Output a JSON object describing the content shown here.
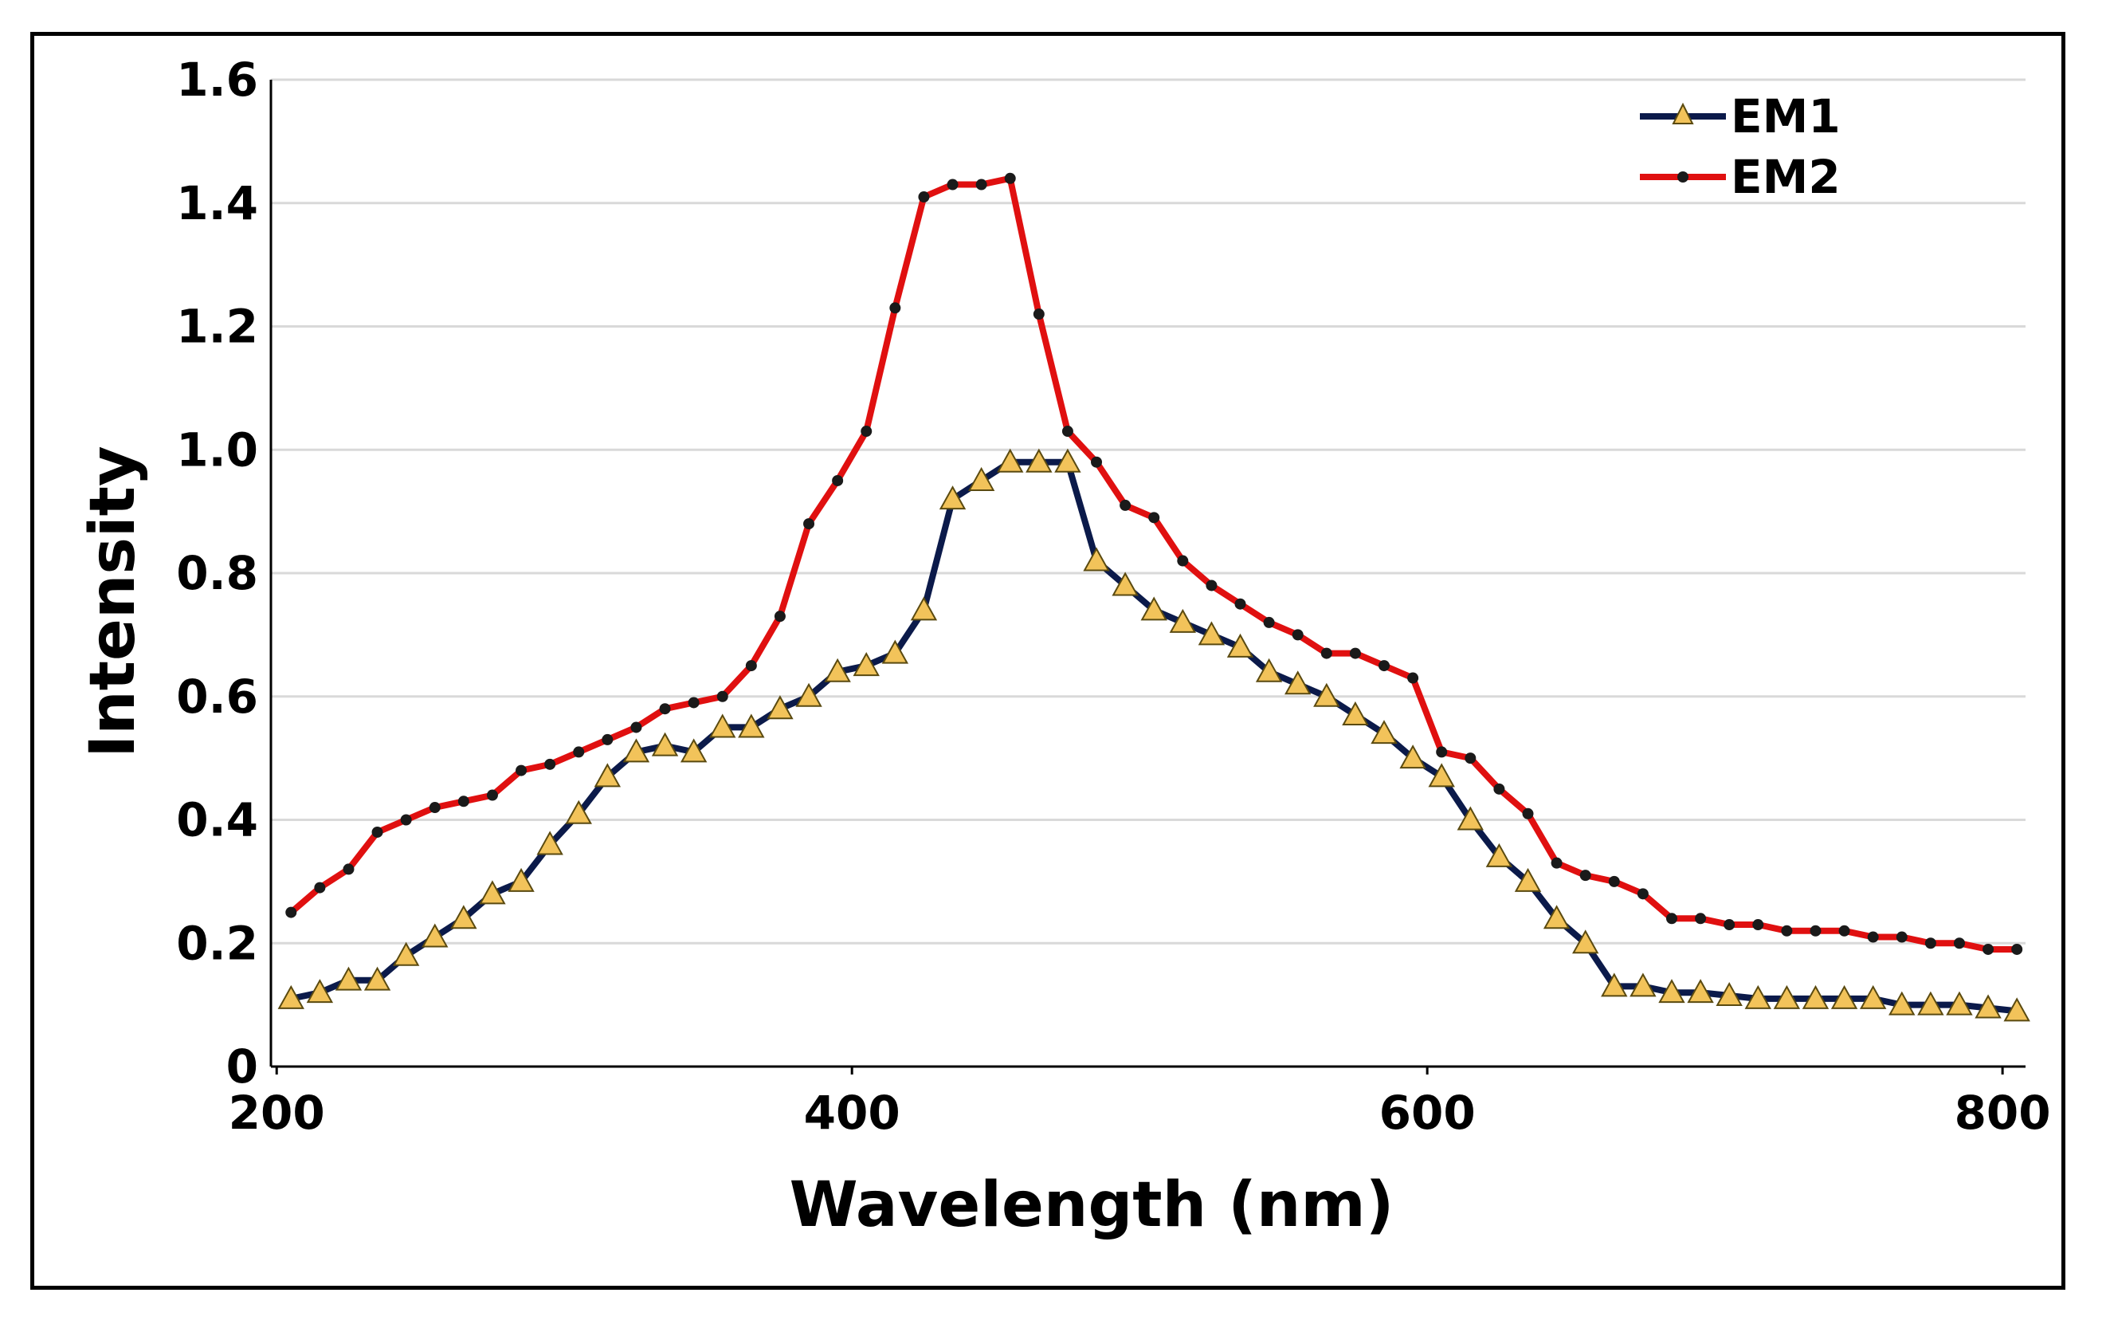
{
  "chart_data": {
    "type": "line",
    "title": "",
    "xlabel": "Wavelength (nm)",
    "ylabel": "Intensity",
    "xlim": [
      198,
      808
    ],
    "ylim": [
      0,
      1.6
    ],
    "grid": true,
    "legend_position": "top-right",
    "x_ticks": [
      200,
      400,
      600,
      800
    ],
    "x_tick_labels": [
      "200",
      "400",
      "600",
      "800"
    ],
    "y_ticks": [
      0,
      0.2,
      0.4,
      0.6,
      0.8,
      1.0,
      1.2,
      1.4,
      1.6
    ],
    "y_tick_labels": [
      "0",
      "0.2",
      "0.4",
      "0.6",
      "0.8",
      "1.0",
      "1.2",
      "1.4",
      "1.6"
    ],
    "series": [
      {
        "name": "EM1",
        "line_color": "#0b1a4a",
        "marker": "triangle",
        "marker_color": "#f2c35a",
        "x": [
          205,
          215,
          225,
          235,
          245,
          255,
          265,
          275,
          285,
          295,
          305,
          315,
          325,
          335,
          345,
          355,
          365,
          375,
          385,
          395,
          405,
          415,
          425,
          435,
          445,
          455,
          465,
          475,
          485,
          495,
          505,
          515,
          525,
          535,
          545,
          555,
          565,
          575,
          585,
          595,
          605,
          615,
          625,
          635,
          645,
          655,
          665,
          675,
          685,
          695,
          705,
          715,
          725,
          735,
          745,
          755,
          765,
          775,
          785,
          795,
          805
        ],
        "y": [
          0.11,
          0.12,
          0.14,
          0.14,
          0.18,
          0.21,
          0.24,
          0.28,
          0.3,
          0.36,
          0.41,
          0.47,
          0.51,
          0.52,
          0.51,
          0.55,
          0.55,
          0.58,
          0.6,
          0.64,
          0.65,
          0.67,
          0.74,
          0.92,
          0.95,
          0.98,
          0.98,
          0.98,
          0.82,
          0.78,
          0.74,
          0.72,
          0.7,
          0.68,
          0.64,
          0.62,
          0.6,
          0.57,
          0.54,
          0.5,
          0.47,
          0.4,
          0.34,
          0.3,
          0.24,
          0.2,
          0.13,
          0.13,
          0.12,
          0.12,
          0.115,
          0.11,
          0.11,
          0.11,
          0.11,
          0.11,
          0.1,
          0.1,
          0.1,
          0.095,
          0.09
        ]
      },
      {
        "name": "EM2",
        "line_color": "#e01010",
        "marker": "dot",
        "marker_color": "#1a1a1a",
        "x": [
          205,
          215,
          225,
          235,
          245,
          255,
          265,
          275,
          285,
          295,
          305,
          315,
          325,
          335,
          345,
          355,
          365,
          375,
          385,
          395,
          405,
          415,
          425,
          435,
          445,
          455,
          465,
          475,
          485,
          495,
          505,
          515,
          525,
          535,
          545,
          555,
          565,
          575,
          585,
          595,
          605,
          615,
          625,
          635,
          645,
          655,
          665,
          675,
          685,
          695,
          705,
          715,
          725,
          735,
          745,
          755,
          765,
          775,
          785,
          795,
          805
        ],
        "y": [
          0.25,
          0.29,
          0.32,
          0.38,
          0.4,
          0.42,
          0.43,
          0.44,
          0.48,
          0.49,
          0.51,
          0.53,
          0.55,
          0.58,
          0.59,
          0.6,
          0.65,
          0.73,
          0.88,
          0.95,
          1.03,
          1.23,
          1.41,
          1.43,
          1.43,
          1.44,
          1.22,
          1.03,
          0.98,
          0.91,
          0.89,
          0.82,
          0.78,
          0.75,
          0.72,
          0.7,
          0.67,
          0.67,
          0.65,
          0.63,
          0.51,
          0.5,
          0.45,
          0.41,
          0.33,
          0.31,
          0.3,
          0.28,
          0.24,
          0.24,
          0.23,
          0.23,
          0.22,
          0.22,
          0.22,
          0.21,
          0.21,
          0.2,
          0.2,
          0.19,
          0.19
        ]
      }
    ]
  }
}
